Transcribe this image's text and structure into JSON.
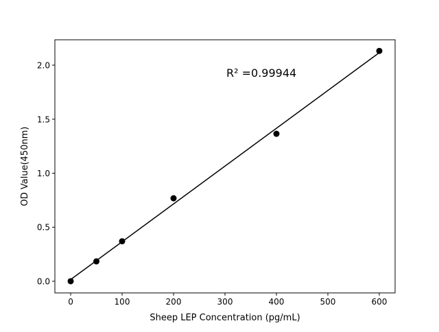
{
  "chart_data": {
    "type": "scatter",
    "title": "",
    "xlabel": "Sheep LEP Concentration (pg/mL)",
    "ylabel": "OD Value(450nm)",
    "xlim": [
      -30.7,
      630.7
    ],
    "ylim": [
      -0.108,
      2.235
    ],
    "xticks": [
      0,
      100,
      200,
      300,
      400,
      500,
      600
    ],
    "xtick_labels": [
      "0",
      "100",
      "200",
      "300",
      "400",
      "500",
      "600"
    ],
    "yticks": [
      0.0,
      0.5,
      1.0,
      1.5,
      2.0
    ],
    "ytick_labels": [
      "0.0",
      "0.5",
      "1.0",
      "1.5",
      "2.0"
    ],
    "grid": false,
    "series": [
      {
        "x": [
          0,
          50,
          100,
          200,
          400,
          600
        ],
        "y": [
          0.0,
          0.184,
          0.37,
          0.768,
          1.365,
          2.132
        ],
        "color": "#000000",
        "marker": "circle"
      }
    ],
    "fit_line": {
      "type": "linear",
      "x_range": [
        0,
        600
      ],
      "color": "#000000"
    },
    "annotation": {
      "text": "R² =0.99944",
      "x": 300,
      "y": 1.93
    }
  }
}
